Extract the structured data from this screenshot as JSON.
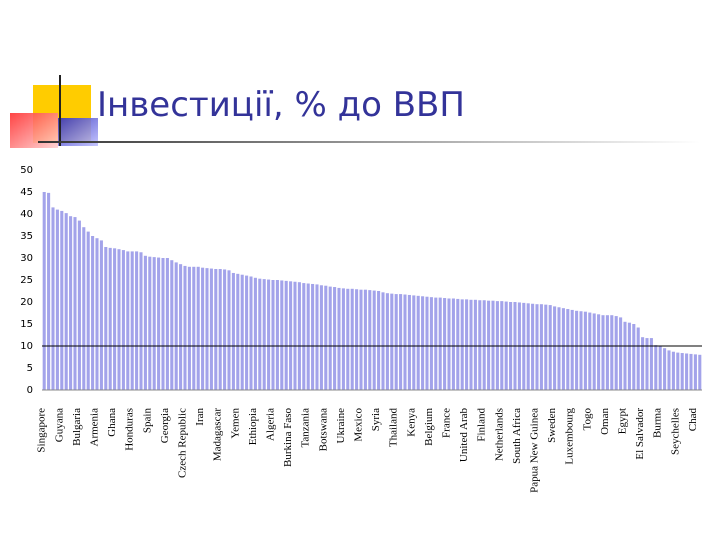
{
  "chart_data": {
    "type": "bar",
    "title": "Інвестиції, % до ВВП",
    "categories": [
      "Singapore",
      null,
      null,
      null,
      "Guyana",
      null,
      null,
      null,
      "Bulgaria",
      null,
      null,
      null,
      "Armenia",
      null,
      null,
      null,
      "Ghana",
      null,
      null,
      null,
      "Honduras",
      null,
      null,
      null,
      "Spain",
      null,
      null,
      null,
      "Georgia",
      null,
      null,
      null,
      "Czech Republic",
      null,
      null,
      null,
      "Iran",
      null,
      null,
      null,
      "Madagascar",
      null,
      null,
      null,
      "Yemen",
      null,
      null,
      null,
      "Ethiopia",
      null,
      null,
      null,
      "Algeria",
      null,
      null,
      null,
      "Burkina Faso",
      null,
      null,
      null,
      "Tanzania",
      null,
      null,
      null,
      "Botswana",
      null,
      null,
      null,
      "Ukraine",
      null,
      null,
      null,
      "Mexico",
      null,
      null,
      null,
      "Syria",
      null,
      null,
      null,
      "Thailand",
      null,
      null,
      null,
      "Kenya",
      null,
      null,
      null,
      "Belgium",
      null,
      null,
      null,
      "France",
      null,
      null,
      null,
      "United Arab",
      null,
      null,
      null,
      "Finland",
      null,
      null,
      null,
      "Netherlands",
      null,
      null,
      null,
      "South Africa",
      null,
      null,
      null,
      "Papua New Guinea",
      null,
      null,
      null,
      "Sweden",
      null,
      null,
      null,
      "Luxembourg",
      null,
      null,
      null,
      "Togo",
      null,
      null,
      null,
      "Oman",
      null,
      null,
      null,
      "Egypt",
      null,
      null,
      null,
      "El Salvador",
      null,
      null,
      null,
      "Burma",
      null,
      null,
      null,
      "Seychelles",
      null,
      null,
      null,
      "Chad",
      null
    ],
    "values": [
      45,
      44.8,
      41.5,
      41,
      40.7,
      40.2,
      39.5,
      39.3,
      38.5,
      37,
      36,
      35,
      34.5,
      34,
      32.5,
      32.3,
      32.2,
      32,
      31.8,
      31.5,
      31.5,
      31.5,
      31.3,
      30.5,
      30.3,
      30.2,
      30.1,
      30,
      30,
      29.5,
      29,
      28.6,
      28.2,
      28,
      28,
      28,
      27.8,
      27.7,
      27.6,
      27.5,
      27.5,
      27.4,
      27.2,
      26.6,
      26.4,
      26.2,
      26,
      25.8,
      25.5,
      25.3,
      25.2,
      25.1,
      25,
      25,
      24.9,
      24.8,
      24.7,
      24.6,
      24.5,
      24.3,
      24.2,
      24.1,
      24,
      23.8,
      23.7,
      23.5,
      23.4,
      23.2,
      23.1,
      23,
      23,
      22.9,
      22.8,
      22.8,
      22.7,
      22.6,
      22.5,
      22.2,
      22,
      21.9,
      21.8,
      21.8,
      21.7,
      21.6,
      21.5,
      21.4,
      21.3,
      21.2,
      21.1,
      21,
      21,
      20.9,
      20.8,
      20.8,
      20.7,
      20.6,
      20.6,
      20.5,
      20.5,
      20.4,
      20.4,
      20.3,
      20.3,
      20.2,
      20.2,
      20.1,
      20,
      20,
      19.9,
      19.8,
      19.7,
      19.6,
      19.5,
      19.5,
      19.4,
      19.3,
      19,
      18.8,
      18.6,
      18.4,
      18.2,
      18,
      17.9,
      17.8,
      17.6,
      17.4,
      17.2,
      17,
      17,
      17,
      16.8,
      16.5,
      15.5,
      15.3,
      15,
      14.2,
      12,
      11.8,
      11.8,
      10.2,
      10,
      9.5,
      9,
      8.7,
      8.5,
      8.4,
      8.3,
      8.2,
      8.1,
      8
    ],
    "color": "#a3a3ea",
    "reference_line": 10,
    "ylim": [
      0,
      50
    ],
    "yticks": [
      0,
      5,
      10,
      15,
      20,
      25,
      30,
      35,
      40,
      45,
      50
    ]
  }
}
